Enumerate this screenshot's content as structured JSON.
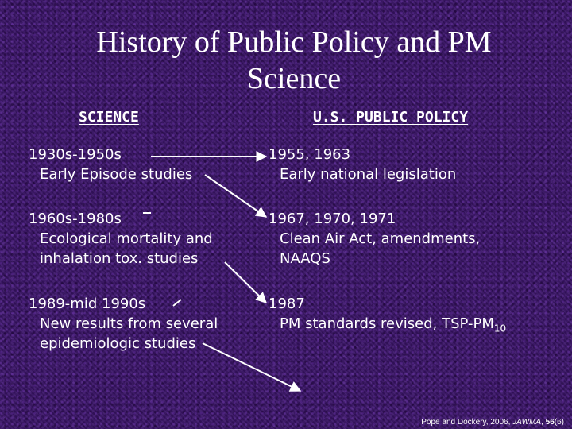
{
  "title": "History of Public Policy and PM Science",
  "headers": {
    "science": "SCIENCE",
    "policy": "U.S. PUBLIC POLICY"
  },
  "science": [
    {
      "period": "1930s-1950s",
      "lines": [
        "Early Episode studies"
      ]
    },
    {
      "period": "1960s-1980s",
      "lines": [
        "Ecological mortality and",
        "inhalation tox. studies"
      ]
    },
    {
      "period": "1989-mid 1990s",
      "lines": [
        "New results from several",
        "epidemiologic studies"
      ]
    }
  ],
  "policy": [
    {
      "years": "1955, 1963",
      "lines": [
        "Early national legislation"
      ]
    },
    {
      "years": "1967, 1970, 1971",
      "lines": [
        "Clean Air Act, amendments,",
        "NAAQS"
      ]
    },
    {
      "years": "1987",
      "line_prefix": "PM standards revised, TSP-PM",
      "line_sub": "10"
    }
  ],
  "citation": {
    "authors": "Pope and Dockery, 2006,",
    "journal": "JAWMA",
    "volume": "56",
    "issue": "(6)"
  },
  "colors": {
    "background": "#3a1468",
    "text": "#ffffff"
  }
}
